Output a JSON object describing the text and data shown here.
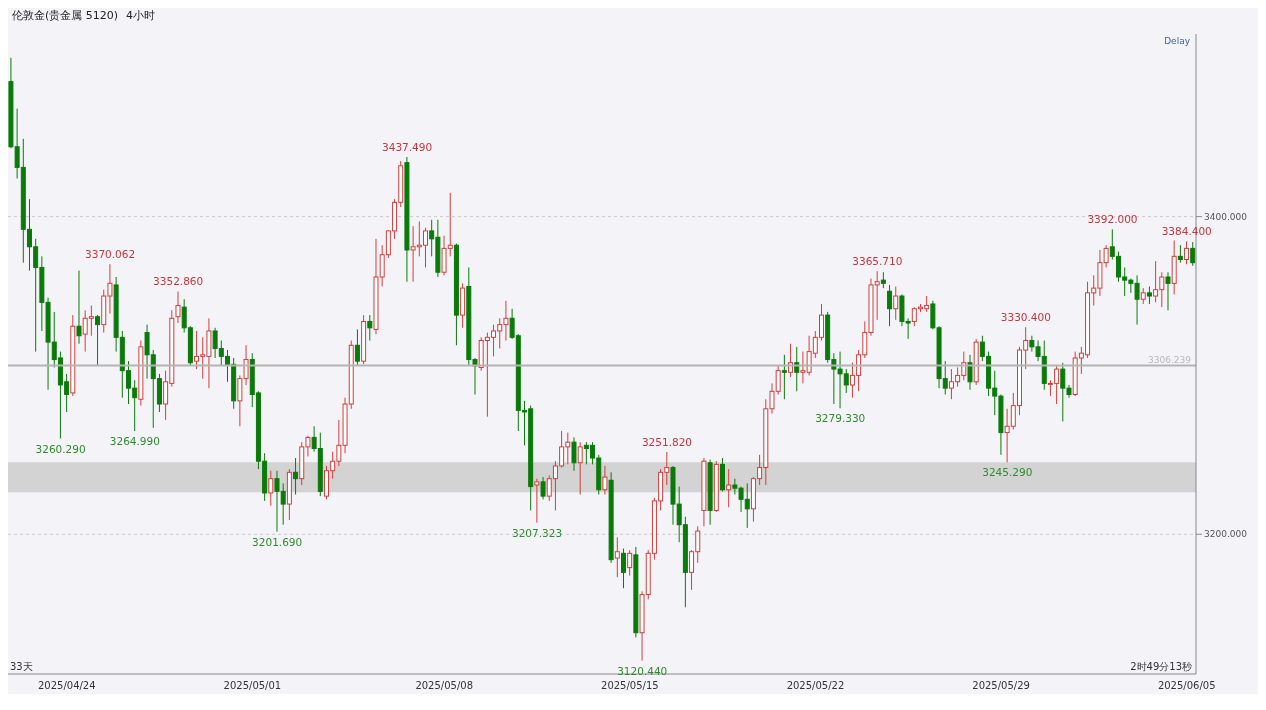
{
  "chart_data": {
    "type": "candlestick",
    "title": "伦敦金(贵金属 5120)",
    "subtitle": "4小时",
    "categories": [
      null,
      null,
      null,
      null,
      null,
      null,
      null,
      null,
      null,
      "2025/04/24",
      null,
      null,
      null,
      null,
      null,
      null,
      null,
      null,
      null,
      null,
      null,
      null,
      null,
      null,
      null,
      null,
      null,
      null,
      null,
      null,
      null,
      null,
      null,
      null,
      null,
      null,
      null,
      null,
      null,
      "2025/05/01",
      null,
      null,
      null,
      null,
      null,
      null,
      null,
      null,
      null,
      null,
      null,
      null,
      null,
      null,
      null,
      null,
      null,
      null,
      null,
      null,
      null,
      null,
      null,
      null,
      null,
      null,
      null,
      null,
      null,
      null,
      "2025/05/08",
      null,
      null,
      null,
      null,
      null,
      null,
      null,
      null,
      null,
      null,
      null,
      null,
      null,
      null,
      null,
      null,
      null,
      null,
      null,
      null,
      null,
      null,
      null,
      null,
      null,
      null,
      null,
      null,
      null,
      "2025/05/15",
      null,
      null,
      null,
      null,
      null,
      null,
      null,
      null,
      null,
      null,
      null,
      null,
      null,
      null,
      null,
      null,
      null,
      null,
      null,
      null,
      null,
      null,
      null,
      null,
      null,
      null,
      null,
      null,
      null,
      "2025/05/22",
      null,
      null,
      null,
      null,
      null,
      null,
      null,
      null,
      null,
      null,
      null,
      null,
      null,
      null,
      null,
      null,
      null,
      null,
      null,
      null,
      null,
      null,
      null,
      null,
      null,
      null,
      null,
      null,
      null,
      "2025/05/29",
      null,
      null,
      null,
      null,
      null,
      null,
      null,
      null,
      null,
      null,
      null,
      null,
      null,
      null,
      null,
      null,
      null,
      null,
      null,
      null,
      null,
      null,
      null,
      null,
      null,
      null,
      null,
      null,
      null,
      "2025/06/05",
      null
    ],
    "ohlc": [
      [
        3485,
        3500,
        3443,
        3444
      ],
      [
        3444,
        3468,
        3424,
        3431
      ],
      [
        3431,
        3449,
        3371,
        3392
      ],
      [
        3392,
        3411,
        3366,
        3381
      ],
      [
        3381,
        3386,
        3315,
        3368
      ],
      [
        3368,
        3375,
        3328,
        3346
      ],
      [
        3346,
        3349,
        3291,
        3321
      ],
      [
        3321,
        3340,
        3305,
        3310
      ],
      [
        3311,
        3315,
        3260.29,
        3294
      ],
      [
        3296,
        3301,
        3277,
        3288
      ],
      [
        3289,
        3338,
        3287,
        3331
      ],
      [
        3331,
        3366,
        3320,
        3325
      ],
      [
        3326,
        3341,
        3315,
        3336
      ],
      [
        3336,
        3344,
        3325,
        3337
      ],
      [
        3337,
        3338,
        3306,
        3332
      ],
      [
        3332,
        3354,
        3327,
        3350
      ],
      [
        3350,
        3370.062,
        3339,
        3358
      ],
      [
        3357,
        3362,
        3315,
        3324
      ],
      [
        3324,
        3328,
        3286,
        3303
      ],
      [
        3303,
        3309,
        3282,
        3292
      ],
      [
        3292,
        3297,
        3264.99,
        3286
      ],
      [
        3285,
        3322,
        3281,
        3318
      ],
      [
        3327,
        3332,
        3298,
        3313
      ],
      [
        3313,
        3316,
        3267,
        3298
      ],
      [
        3298,
        3301,
        3277,
        3282
      ],
      [
        3282,
        3303,
        3272,
        3296
      ],
      [
        3295,
        3341,
        3293,
        3336
      ],
      [
        3337,
        3352.86,
        3333,
        3344
      ],
      [
        3343,
        3348,
        3327,
        3330
      ],
      [
        3330,
        3331,
        3306,
        3308
      ],
      [
        3309,
        3328,
        3304,
        3312
      ],
      [
        3312,
        3324,
        3298,
        3313
      ],
      [
        3312,
        3336,
        3292,
        3328
      ],
      [
        3328,
        3330,
        3311,
        3317
      ],
      [
        3317,
        3322,
        3306,
        3312
      ],
      [
        3312,
        3316,
        3296,
        3307
      ],
      [
        3307,
        3311,
        3279,
        3284
      ],
      [
        3284,
        3300,
        3268,
        3298
      ],
      [
        3298,
        3319,
        3294,
        3310
      ],
      [
        3310,
        3314,
        3280,
        3288
      ],
      [
        3289,
        3290,
        3241,
        3246
      ],
      [
        3246,
        3251,
        3221,
        3226
      ],
      [
        3226,
        3240,
        3218,
        3235
      ],
      [
        3235,
        3240,
        3201.69,
        3227
      ],
      [
        3227,
        3232,
        3206,
        3219
      ],
      [
        3219,
        3241,
        3209,
        3239
      ],
      [
        3239,
        3248,
        3225,
        3235
      ],
      [
        3235,
        3258,
        3231,
        3255
      ],
      [
        3255,
        3262,
        3249,
        3261
      ],
      [
        3261,
        3268,
        3252,
        3254
      ],
      [
        3254,
        3264,
        3224,
        3227
      ],
      [
        3224,
        3243,
        3222,
        3240
      ],
      [
        3240,
        3252,
        3235,
        3246
      ],
      [
        3246,
        3272,
        3243,
        3256
      ],
      [
        3256,
        3286,
        3251,
        3282
      ],
      [
        3282,
        3322,
        3279,
        3319
      ],
      [
        3319,
        3329,
        3306,
        3309
      ],
      [
        3309,
        3338,
        3307,
        3334
      ],
      [
        3334,
        3338,
        3322,
        3330
      ],
      [
        3329,
        3386,
        3326,
        3362
      ],
      [
        3362,
        3382,
        3356,
        3376
      ],
      [
        3376,
        3391.5,
        3374,
        3391
      ],
      [
        3391,
        3411,
        3386,
        3409
      ],
      [
        3409,
        3435,
        3406,
        3432
      ],
      [
        3434,
        3437.49,
        3359,
        3379
      ],
      [
        3379,
        3394,
        3359,
        3381
      ],
      [
        3381,
        3397,
        3375,
        3382
      ],
      [
        3382,
        3393,
        3368,
        3391
      ],
      [
        3391,
        3398,
        3375,
        3386
      ],
      [
        3387,
        3398,
        3362,
        3365
      ],
      [
        3365,
        3388,
        3363,
        3380
      ],
      [
        3380,
        3415,
        3375,
        3382
      ],
      [
        3382,
        3383,
        3319,
        3338
      ],
      [
        3338,
        3358,
        3330,
        3355
      ],
      [
        3356,
        3368,
        3306,
        3310
      ],
      [
        3310,
        3311,
        3288,
        3306
      ],
      [
        3305,
        3324,
        3303,
        3322
      ],
      [
        3322,
        3327,
        3274,
        3324
      ],
      [
        3324,
        3332,
        3312,
        3328
      ],
      [
        3328,
        3336,
        3317,
        3332
      ],
      [
        3332,
        3347,
        3322,
        3336
      ],
      [
        3336,
        3342,
        3323,
        3324
      ],
      [
        3325,
        3326,
        3265,
        3278
      ],
      [
        3278,
        3284,
        3256,
        3277
      ],
      [
        3279,
        3281,
        3215,
        3230
      ],
      [
        3231,
        3235,
        3207.323,
        3233
      ],
      [
        3233,
        3236,
        3222,
        3224
      ],
      [
        3224,
        3237,
        3221,
        3235
      ],
      [
        3235,
        3246,
        3215,
        3243
      ],
      [
        3243,
        3265,
        3242,
        3255
      ],
      [
        3255,
        3264,
        3244,
        3258
      ],
      [
        3258,
        3261,
        3240,
        3245
      ],
      [
        3245,
        3258,
        3225,
        3255
      ],
      [
        3256,
        3258,
        3244,
        3254
      ],
      [
        3256,
        3258,
        3244,
        3248
      ],
      [
        3248,
        3250,
        3225,
        3228
      ],
      [
        3228,
        3243,
        3225,
        3236
      ],
      [
        3234,
        3239,
        3182,
        3184
      ],
      [
        3185,
        3198,
        3173,
        3189
      ],
      [
        3188,
        3191,
        3166,
        3176
      ],
      [
        3179,
        3190,
        3174,
        3188
      ],
      [
        3187,
        3192,
        3135,
        3138
      ],
      [
        3138,
        3164,
        3120.44,
        3162
      ],
      [
        3162,
        3190,
        3159,
        3188
      ],
      [
        3188,
        3223,
        3184,
        3221
      ],
      [
        3221,
        3241,
        3215,
        3239
      ],
      [
        3239,
        3251.82,
        3231,
        3242
      ],
      [
        3242,
        3243,
        3206,
        3219
      ],
      [
        3219,
        3230,
        3195,
        3206
      ],
      [
        3206,
        3211,
        3154,
        3176
      ],
      [
        3176,
        3190,
        3165,
        3189
      ],
      [
        3189,
        3205,
        3182,
        3202
      ],
      [
        3215,
        3248,
        3205,
        3246
      ],
      [
        3245,
        3247,
        3206,
        3215
      ],
      [
        3215,
        3246,
        3214,
        3244
      ],
      [
        3244,
        3248,
        3227,
        3228
      ],
      [
        3228,
        3241,
        3217,
        3231
      ],
      [
        3231,
        3235,
        3225,
        3229
      ],
      [
        3229,
        3230,
        3214,
        3222
      ],
      [
        3222,
        3232,
        3204,
        3216
      ],
      [
        3216,
        3236,
        3208,
        3235
      ],
      [
        3235,
        3250,
        3231,
        3242
      ],
      [
        3242,
        3285,
        3231,
        3279
      ],
      [
        3279,
        3295,
        3276,
        3290
      ],
      [
        3290,
        3306,
        3288,
        3303
      ],
      [
        3303,
        3313,
        3285,
        3302
      ],
      [
        3302,
        3320,
        3299,
        3308
      ],
      [
        3308,
        3318,
        3290,
        3302
      ],
      [
        3302,
        3315,
        3295,
        3303
      ],
      [
        3302,
        3325,
        3300,
        3315
      ],
      [
        3314,
        3328,
        3311,
        3324
      ],
      [
        3324,
        3345,
        3322,
        3338
      ],
      [
        3338,
        3340,
        3308,
        3310
      ],
      [
        3310,
        3314,
        3282,
        3304
      ],
      [
        3304,
        3315,
        3279.33,
        3301
      ],
      [
        3301,
        3304,
        3289,
        3294
      ],
      [
        3294,
        3308,
        3286,
        3300
      ],
      [
        3300,
        3316,
        3290,
        3313
      ],
      [
        3313,
        3334,
        3311,
        3327
      ],
      [
        3327,
        3361,
        3325,
        3357
      ],
      [
        3357,
        3365.71,
        3335,
        3359
      ],
      [
        3360,
        3365,
        3355,
        3358
      ],
      [
        3353,
        3357,
        3331,
        3342
      ],
      [
        3342,
        3356,
        3335,
        3350
      ],
      [
        3350,
        3351,
        3331,
        3334
      ],
      [
        3334,
        3336,
        3323,
        3333
      ],
      [
        3334,
        3343,
        3331,
        3342
      ],
      [
        3342,
        3345,
        3340,
        3343
      ],
      [
        3342,
        3350,
        3340,
        3344
      ],
      [
        3345,
        3347,
        3329,
        3330
      ],
      [
        3330,
        3331,
        3292,
        3298
      ],
      [
        3298,
        3309,
        3288,
        3292
      ],
      [
        3292,
        3304,
        3285,
        3296
      ],
      [
        3296,
        3305,
        3293,
        3300
      ],
      [
        3300,
        3315,
        3297,
        3308
      ],
      [
        3308,
        3313,
        3291,
        3296
      ],
      [
        3296,
        3323,
        3294,
        3321
      ],
      [
        3321,
        3325,
        3309,
        3312
      ],
      [
        3312,
        3315,
        3287,
        3292
      ],
      [
        3292,
        3303,
        3275,
        3287
      ],
      [
        3287,
        3288,
        3250,
        3264
      ],
      [
        3264,
        3279,
        3245.29,
        3268
      ],
      [
        3268,
        3289,
        3266,
        3281
      ],
      [
        3281,
        3318,
        3275,
        3316
      ],
      [
        3316,
        3330.4,
        3304,
        3322
      ],
      [
        3322,
        3325,
        3315,
        3318
      ],
      [
        3318,
        3322,
        3309,
        3312
      ],
      [
        3312,
        3322,
        3291,
        3295
      ],
      [
        3295,
        3297,
        3287,
        3295
      ],
      [
        3295,
        3306,
        3282,
        3304
      ],
      [
        3304,
        3308,
        3271,
        3292
      ],
      [
        3292,
        3294,
        3286,
        3288
      ],
      [
        3288,
        3315,
        3287,
        3311
      ],
      [
        3311,
        3318,
        3301,
        3314
      ],
      [
        3313,
        3359,
        3311,
        3352
      ],
      [
        3352,
        3363,
        3344,
        3355
      ],
      [
        3355,
        3379,
        3350,
        3371
      ],
      [
        3371,
        3382,
        3368,
        3380
      ],
      [
        3381,
        3392,
        3373,
        3375
      ],
      [
        3375,
        3378,
        3359,
        3362
      ],
      [
        3362,
        3368,
        3350,
        3360
      ],
      [
        3360,
        3361,
        3352,
        3358
      ],
      [
        3358,
        3363,
        3332,
        3348
      ],
      [
        3348,
        3355,
        3345,
        3352
      ],
      [
        3352,
        3356,
        3345,
        3350
      ],
      [
        3350,
        3372,
        3346,
        3354
      ],
      [
        3354,
        3365,
        3343,
        3362
      ],
      [
        3362,
        3365,
        3341,
        3358
      ],
      [
        3358,
        3385,
        3351,
        3375
      ],
      [
        3375,
        3382,
        3371,
        3373
      ],
      [
        3373,
        3384.4,
        3370,
        3380
      ],
      [
        3380,
        3384,
        3369,
        3371
      ]
    ],
    "ylim": [
      3112,
      3515
    ],
    "yticks": [
      {
        "value": 3200,
        "label": "3200.000"
      },
      {
        "value": 3400,
        "label": "3400.000"
      }
    ],
    "grid": "y",
    "ref_lines": [
      {
        "axis": "y",
        "value": 3306.239,
        "label": "3306.239",
        "color": "#b4b4b4"
      }
    ],
    "bands": [
      {
        "axis": "y",
        "from": 3226.5,
        "to": 3245.3,
        "color": "#bdbdbd"
      }
    ],
    "annotations": [
      {
        "text": "3437.490",
        "y": 3437.49
      },
      {
        "text": "3370.062",
        "y": 3370.062
      },
      {
        "text": "3352.860",
        "y": 3352.86
      },
      {
        "text": "3260.290",
        "y": 3260.29
      },
      {
        "text": "3264.990",
        "y": 3264.99
      },
      {
        "text": "3201.690",
        "y": 3201.69
      },
      {
        "text": "3207.323",
        "y": 3207.323
      },
      {
        "text": "3251.820",
        "y": 3251.82
      },
      {
        "text": "3120.440",
        "y": 3120.44
      },
      {
        "text": "3365.710",
        "y": 3365.71
      },
      {
        "text": "3279.330",
        "y": 3279.33
      },
      {
        "text": "3245.290",
        "y": 3245.29
      },
      {
        "text": "3330.400",
        "y": 3330.4
      },
      {
        "text": "3392.000",
        "y": 3392
      },
      {
        "text": "3384.400",
        "y": 3384.4
      },
      "Delay",
      "33天",
      "2时49分13秒"
    ]
  }
}
